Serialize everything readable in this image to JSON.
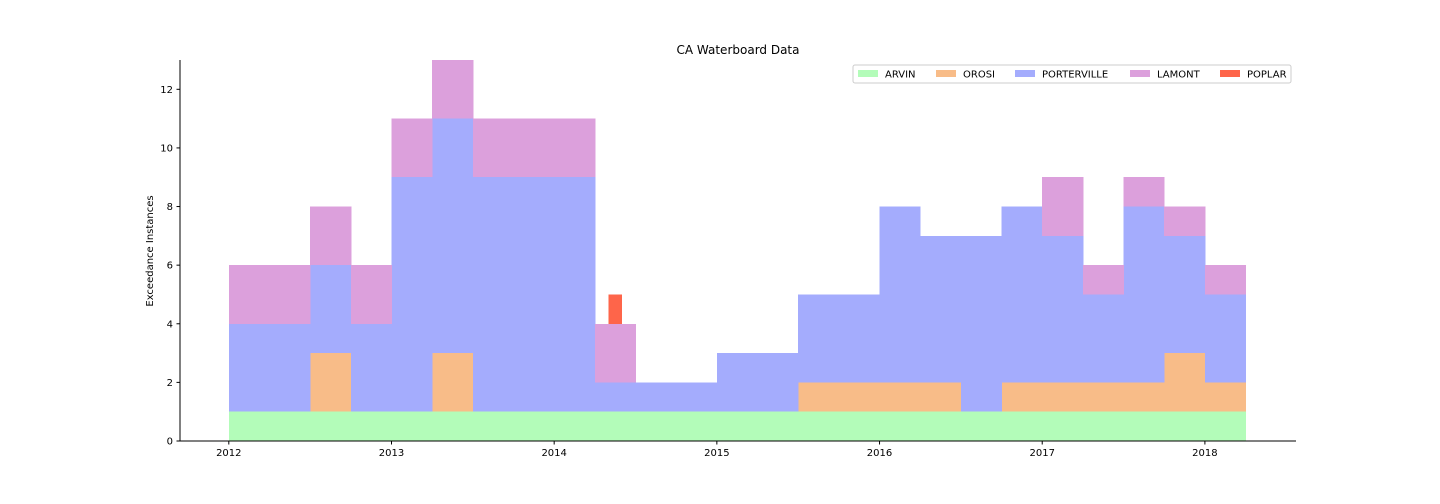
{
  "chart_data": {
    "type": "bar",
    "stacked": true,
    "title": "CA Waterboard Data",
    "xlabel": "",
    "ylabel": "Exceedance Instances",
    "xlim": [
      2011.7,
      2018.56
    ],
    "ylim": [
      0,
      13
    ],
    "xticks": [
      2012,
      2013,
      2014,
      2015,
      2016,
      2017,
      2018
    ],
    "yticks": [
      0,
      2,
      4,
      6,
      8,
      10,
      12
    ],
    "grid": false,
    "legend": {
      "placement": "top-right",
      "columns": 5
    },
    "bin_width": 0.25,
    "bins": [
      2012.0,
      2012.25,
      2012.5,
      2012.75,
      2013.0,
      2013.25,
      2013.5,
      2013.75,
      2014.0,
      2014.25,
      2014.5,
      2014.75,
      2015.0,
      2015.25,
      2015.5,
      2015.75,
      2016.0,
      2016.25,
      2016.5,
      2016.75,
      2017.0,
      2017.25,
      2017.5,
      2017.75,
      2018.0
    ],
    "series": [
      {
        "name": "ARVIN",
        "color": "#b3fcb9",
        "values": [
          1,
          1,
          1,
          1,
          1,
          1,
          1,
          1,
          1,
          1,
          1,
          1,
          1,
          1,
          1,
          1,
          1,
          1,
          1,
          1,
          1,
          1,
          1,
          1,
          1
        ]
      },
      {
        "name": "OROSI",
        "color": "#f8bc88",
        "values": [
          0,
          0,
          2,
          0,
          0,
          2,
          0,
          0,
          0,
          0,
          0,
          0,
          0,
          0,
          1,
          1,
          1,
          1,
          0,
          1,
          1,
          1,
          1,
          2,
          1
        ]
      },
      {
        "name": "PORTERVILLE",
        "color": "#a4acfd",
        "values": [
          3,
          3,
          3,
          3,
          8,
          8,
          8,
          8,
          8,
          1,
          1,
          1,
          2,
          2,
          3,
          3,
          6,
          5,
          6,
          6,
          5,
          3,
          6,
          4,
          3
        ]
      },
      {
        "name": "LAMONT",
        "color": "#dca0dc",
        "values": [
          2,
          2,
          2,
          2,
          2,
          2,
          2,
          2,
          2,
          2,
          0,
          0,
          0,
          0,
          0,
          0,
          0,
          0,
          0,
          0,
          2,
          1,
          1,
          1,
          1
        ]
      },
      {
        "name": "POPLAR",
        "color": "#fe654a",
        "bars": [
          {
            "x": 2014.375,
            "y0": 4,
            "y1": 5,
            "width": 0.083
          }
        ]
      }
    ]
  }
}
